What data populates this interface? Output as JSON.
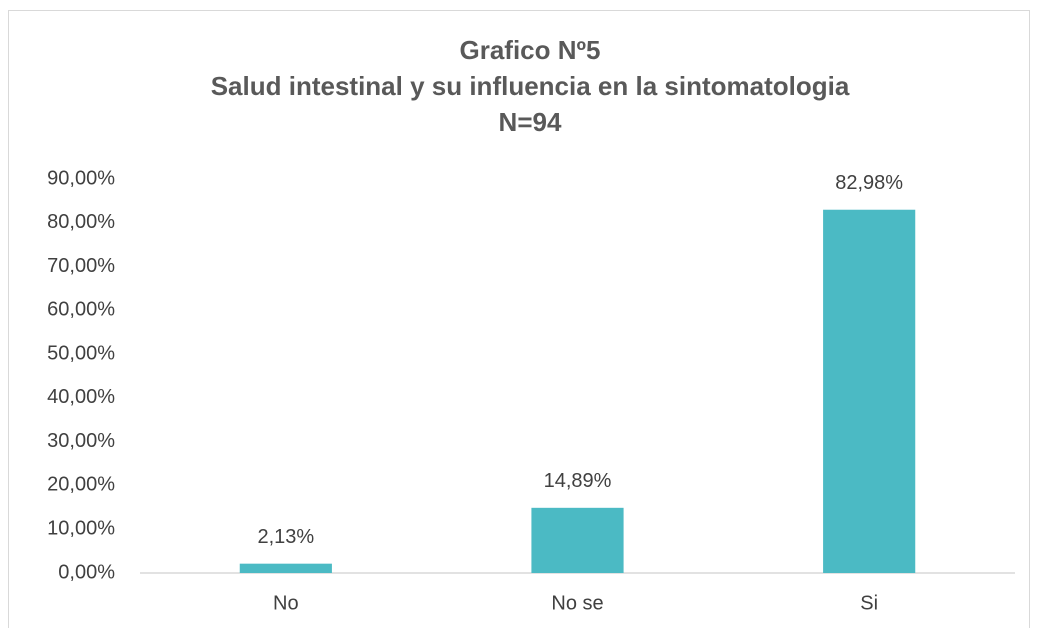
{
  "chart_data": {
    "type": "bar",
    "title": [
      "Grafico Nº5",
      "Salud intestinal y su influencia en la sintomatologia",
      "N=94"
    ],
    "categories": [
      "No",
      "No se",
      "Si"
    ],
    "values": [
      2.13,
      14.89,
      82.98
    ],
    "value_labels": [
      "2,13%",
      "14,89%",
      "82,98%"
    ],
    "color": "#4bbac4",
    "ylim": [
      0,
      90
    ],
    "yticks": [
      {
        "value": 0,
        "label": "0,00%"
      },
      {
        "value": 10,
        "label": "10,00%"
      },
      {
        "value": 20,
        "label": "20,00%"
      },
      {
        "value": 30,
        "label": "30,00%"
      },
      {
        "value": 40,
        "label": "40,00%"
      },
      {
        "value": 50,
        "label": "50,00%"
      },
      {
        "value": 60,
        "label": "60,00%"
      },
      {
        "value": 70,
        "label": "70,00%"
      },
      {
        "value": 80,
        "label": "80,00%"
      },
      {
        "value": 90,
        "label": "90,00%"
      }
    ],
    "grid": false
  }
}
